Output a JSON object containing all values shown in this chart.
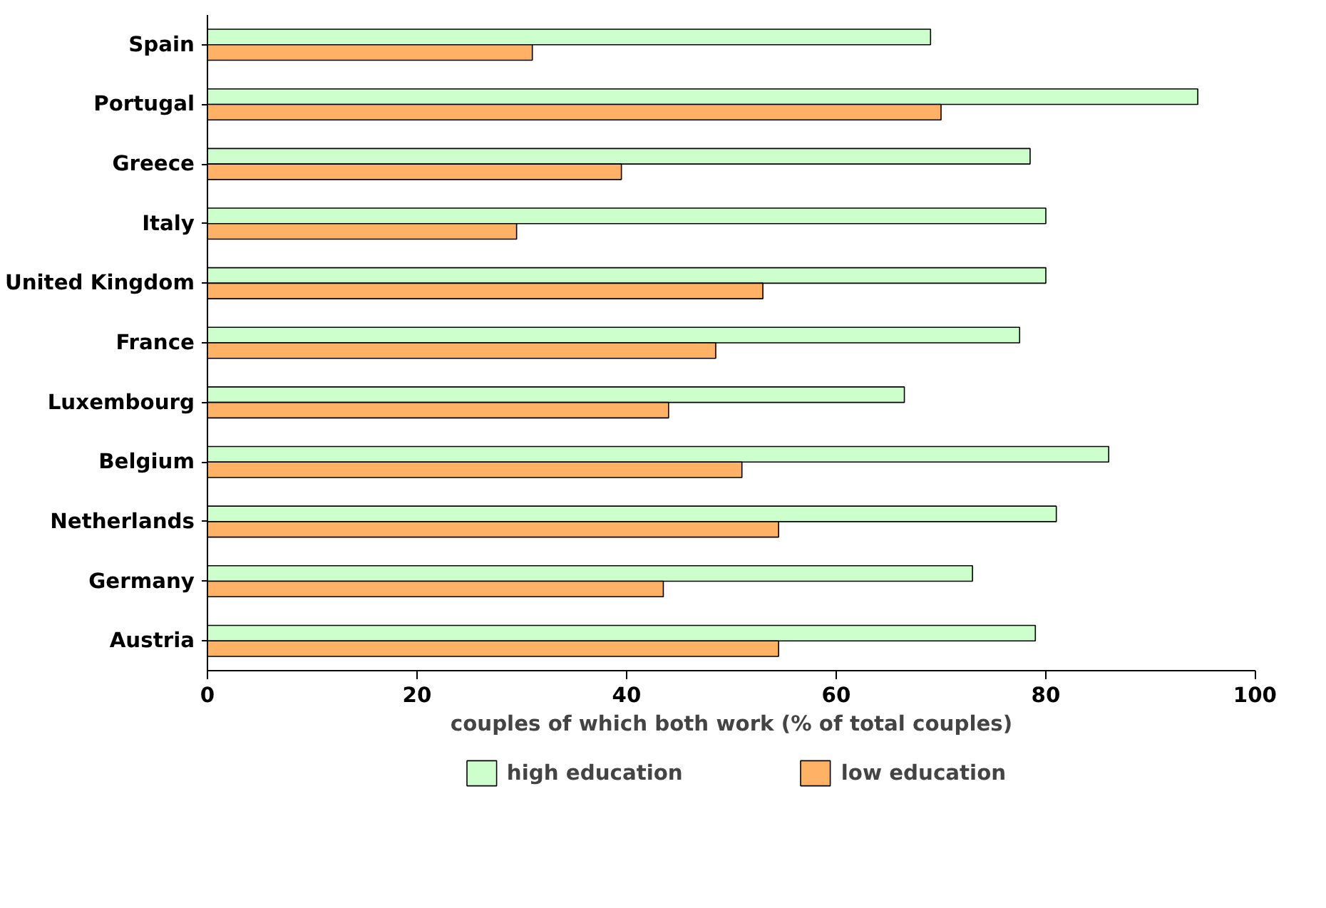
{
  "chart_data": {
    "type": "bar",
    "orientation": "horizontal",
    "xlabel": "couples of which both work (% of total couples)",
    "categories": [
      "Spain",
      "Portugal",
      "Greece",
      "Italy",
      "United Kingdom",
      "France",
      "Luxembourg",
      "Belgium",
      "Netherlands",
      "Germany",
      "Austria"
    ],
    "series": [
      {
        "name": "high education",
        "color": "#ccffcc",
        "values": [
          69,
          94.5,
          78.5,
          80,
          80,
          77.5,
          66.5,
          86,
          81,
          73,
          79
        ]
      },
      {
        "name": "low education",
        "color": "#ffb266",
        "values": [
          31,
          70,
          39.5,
          29.5,
          53,
          48.5,
          44,
          51,
          54.5,
          43.5,
          54.5
        ]
      }
    ],
    "xlim": [
      0,
      100
    ],
    "xticks": [
      0,
      20,
      40,
      60,
      80,
      100
    ],
    "grid": false,
    "legend": "bottom"
  }
}
